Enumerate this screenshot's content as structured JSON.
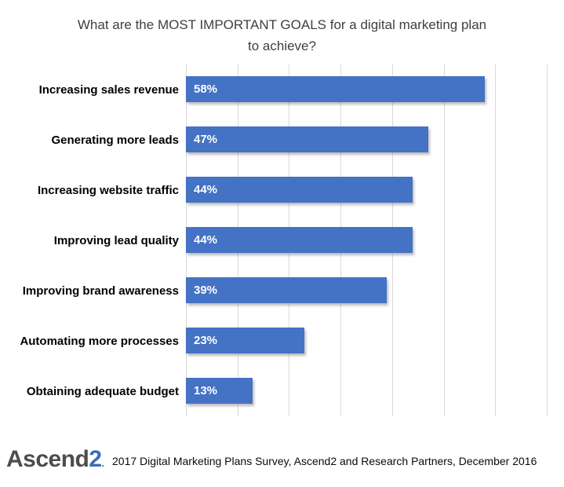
{
  "title": {
    "line1": "What are the MOST IMPORTANT GOALS for a digital marketing plan",
    "line2": "to achieve?"
  },
  "chart_data": {
    "type": "bar",
    "orientation": "horizontal",
    "title": "What are the MOST IMPORTANT GOALS for a digital marketing plan to achieve?",
    "categories": [
      "Increasing sales revenue",
      "Generating more leads",
      "Increasing website traffic",
      "Improving lead quality",
      "Improving brand awareness",
      "Automating more processes",
      "Obtaining adequate budget"
    ],
    "values": [
      58,
      47,
      44,
      44,
      39,
      23,
      13
    ],
    "value_labels": [
      "58%",
      "47%",
      "44%",
      "44%",
      "39%",
      "23%",
      "13%"
    ],
    "xlabel": "",
    "ylabel": "",
    "xlim": [
      0,
      70
    ],
    "gridline_step": 10,
    "grid_on": true,
    "legend": "none",
    "bar_color": "#4472C4"
  },
  "footer": {
    "logo": {
      "text": "Ascend",
      "accent": "2",
      "mark": "."
    },
    "caption": "2017 Digital Marketing Plans Survey, Ascend2 and Research Partners, December 2016"
  },
  "colors": {
    "bar": "#4472C4",
    "gridline": "#D9D9D9",
    "title_text": "#404040",
    "category_text": "#000000",
    "value_text": "#FFFFFF",
    "logo_text": "#4D4D4D",
    "logo_accent": "#3B6CB7"
  }
}
